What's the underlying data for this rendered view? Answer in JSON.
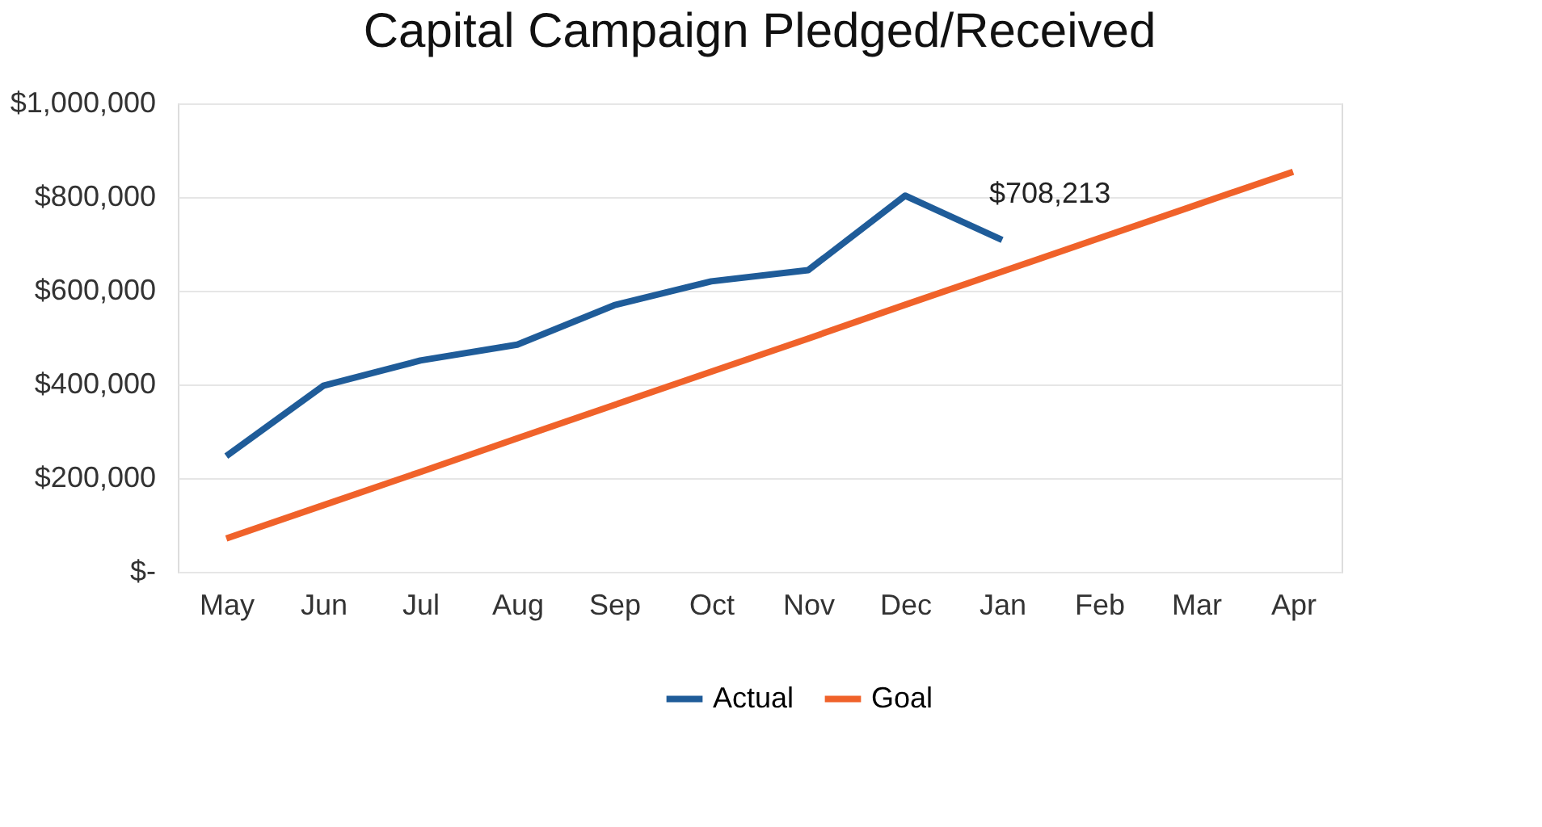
{
  "chart_data": {
    "type": "line",
    "title": "Capital Campaign Pledged/Received",
    "categories": [
      "May",
      "Jun",
      "Jul",
      "Aug",
      "Sep",
      "Oct",
      "Nov",
      "Dec",
      "Jan",
      "Feb",
      "Mar",
      "Apr"
    ],
    "series": [
      {
        "name": "Actual",
        "color": "#1f5c99",
        "values": [
          247000,
          397000,
          451000,
          485000,
          569000,
          620000,
          644000,
          803000,
          708213,
          null,
          null,
          null
        ]
      },
      {
        "name": "Goal",
        "color": "#f0622a",
        "values": [
          71000,
          142000,
          213000,
          285000,
          356000,
          427000,
          498000,
          570000,
          641000,
          712000,
          783000,
          854000
        ]
      }
    ],
    "ylim": [
      0,
      1000000
    ],
    "yticks": [
      {
        "value": 0,
        "label": "$-"
      },
      {
        "value": 200000,
        "label": "$200,000"
      },
      {
        "value": 400000,
        "label": "$400,000"
      },
      {
        "value": 600000,
        "label": "$600,000"
      },
      {
        "value": 800000,
        "label": "$800,000"
      },
      {
        "value": 1000000,
        "label": "$1,000,000"
      }
    ],
    "annotations": [
      {
        "text": "$708,213",
        "x": "Jan",
        "y": 708213
      }
    ],
    "grid": "y",
    "legend": "bottom",
    "marker": "none",
    "line_style": "solid"
  }
}
